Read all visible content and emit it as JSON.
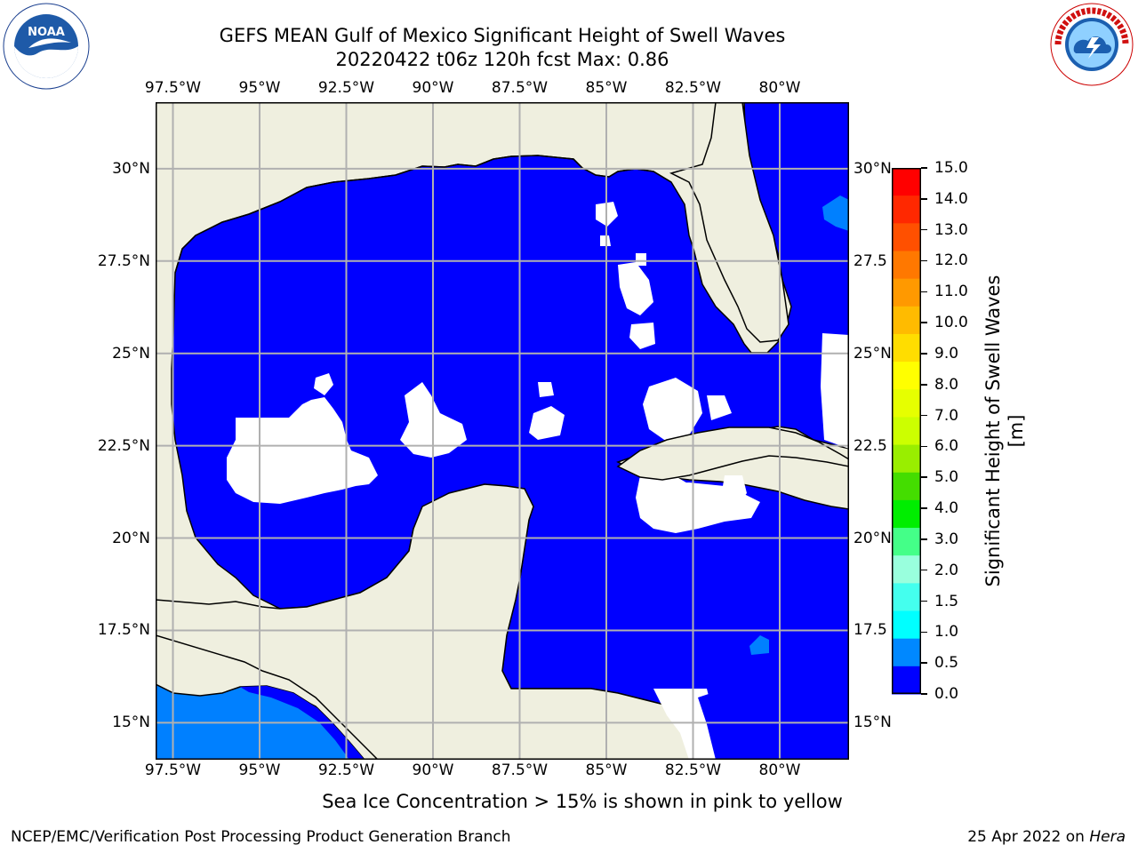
{
  "title_line1": "GEFS MEAN Gulf of Mexico Significant Height of Swell Waves",
  "title_line2": "20220422 t06z 120h fcst   Max: 0.86",
  "lon_labels": [
    "97.5°W",
    "95°W",
    "92.5°W",
    "90°W",
    "87.5°W",
    "85°W",
    "82.5°W",
    "80°W"
  ],
  "lat_labels_left": [
    "30°N",
    "27.5°N",
    "25°N",
    "22.5°N",
    "20°N",
    "17.5°N",
    "15°N"
  ],
  "lat_labels_right": [
    "30°N",
    "27.5",
    "25°N",
    "22.5",
    "20°N",
    "17.5",
    "15°N"
  ],
  "colorbar": {
    "label": "Significant Height of Swell Waves [m]",
    "ticks": [
      "15.0",
      "14.0",
      "13.0",
      "12.0",
      "11.0",
      "10.0",
      "9.0",
      "8.0",
      "7.0",
      "6.0",
      "5.0",
      "4.0",
      "3.0",
      "2.0",
      "1.5",
      "1.0",
      "0.5",
      "0.0"
    ],
    "colors": [
      "#ff0000",
      "#ff2800",
      "#ff5000",
      "#ff7800",
      "#ff9900",
      "#ffbb00",
      "#ffdd00",
      "#ffff00",
      "#e6ff00",
      "#ccff00",
      "#99ee00",
      "#44dd00",
      "#00ee00",
      "#44ff88",
      "#99ffdd",
      "#44ffee",
      "#00ffff",
      "#0088ff",
      "#0000ff"
    ]
  },
  "footnote": "Sea Ice Concentration > 15% is shown in pink to yellow",
  "credit": "NCEP/EMC/Verification Post Processing Product Generation Branch",
  "date_prefix": "25 Apr 2022 on ",
  "date_host": "Hera",
  "colors": {
    "land": "#efefdf",
    "ocean": "#0000ff",
    "swell_low": "#0080ff",
    "grid": "#b0b0b0"
  },
  "map_extent": {
    "lon": [
      -98.0,
      -78.0
    ],
    "lat": [
      14.0,
      31.8
    ]
  }
}
